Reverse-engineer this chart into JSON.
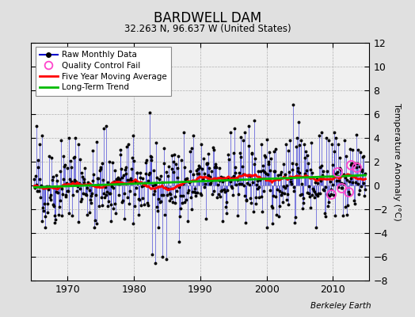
{
  "title": "BARDWELL DAM",
  "subtitle": "32.263 N, 96.637 W (United States)",
  "ylabel": "Temperature Anomaly (°C)",
  "credit": "Berkeley Earth",
  "ylim": [
    -8,
    12
  ],
  "yticks": [
    -8,
    -6,
    -4,
    -2,
    0,
    2,
    4,
    6,
    8,
    10,
    12
  ],
  "xlim": [
    1964.5,
    2015.5
  ],
  "xticks": [
    1970,
    1980,
    1990,
    2000,
    2010
  ],
  "bg_color": "#e0e0e0",
  "plot_bg": "#f0f0f0",
  "raw_color": "#0000cc",
  "ma_color": "#ff0000",
  "trend_color": "#00bb00",
  "qc_color": "#ff44cc",
  "start_year": 1965,
  "n_months": 600,
  "seed": 42,
  "ma_window": 60,
  "qc_fail_indices": [
    536,
    548,
    556,
    568,
    572,
    582
  ]
}
